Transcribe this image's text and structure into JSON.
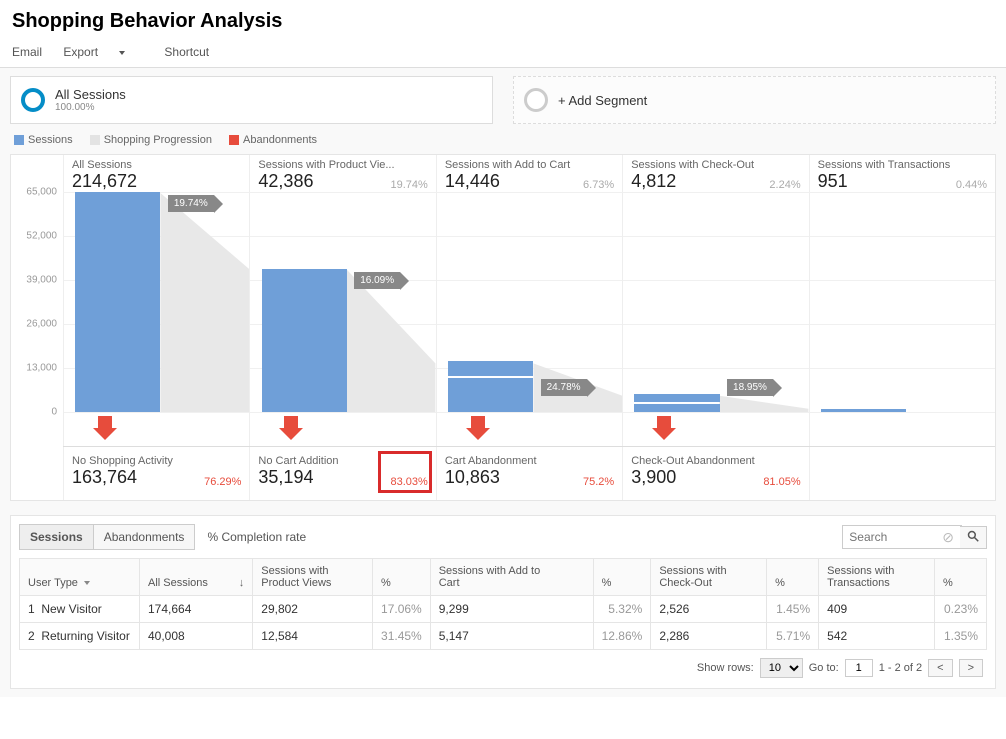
{
  "header": {
    "title": "Shopping Behavior Analysis"
  },
  "menu": {
    "email": "Email",
    "export": "Export",
    "shortcut": "Shortcut"
  },
  "segments": {
    "primary": {
      "title": "All Sessions",
      "sub": "100.00%"
    },
    "add": {
      "label": "+ Add Segment"
    }
  },
  "legend": {
    "sessions": {
      "label": "Sessions",
      "color": "#6f9fd8"
    },
    "progression": {
      "label": "Shopping Progression",
      "color": "#e3e3e3"
    },
    "abandon": {
      "label": "Abandonments",
      "color": "#e74c3c"
    }
  },
  "chart": {
    "ymax": 65000,
    "ystep": 13000,
    "yticks": [
      "65,000",
      "52,000",
      "39,000",
      "26,000",
      "13,000",
      "0"
    ],
    "stages": [
      {
        "title": "All Sessions",
        "value": "214,672",
        "pct": "",
        "bar": 65000,
        "bar2": 0,
        "prog_pct": "19.74%"
      },
      {
        "title": "Sessions with Product Vie...",
        "value": "42,386",
        "pct": "19.74%",
        "bar": 42386,
        "bar2": 0,
        "prog_pct": "16.09%"
      },
      {
        "title": "Sessions with Add to Cart",
        "value": "14,446",
        "pct": "6.73%",
        "bar": 10000,
        "bar2": 4446,
        "prog_pct": "24.78%"
      },
      {
        "title": "Sessions with Check-Out",
        "value": "4,812",
        "pct": "2.24%",
        "bar": 2500,
        "bar2": 2312,
        "prog_pct": "18.95%"
      },
      {
        "title": "Sessions with Transactions",
        "value": "951",
        "pct": "0.44%",
        "bar": 951,
        "bar2": 0,
        "prog_pct": ""
      }
    ],
    "abandon": [
      {
        "title": "No Shopping Activity",
        "value": "163,764",
        "pct": "76.29%",
        "highlight": false
      },
      {
        "title": "No Cart Addition",
        "value": "35,194",
        "pct": "83.03%",
        "highlight": true
      },
      {
        "title": "Cart Abandonment",
        "value": "10,863",
        "pct": "75.2%",
        "highlight": false
      },
      {
        "title": "Check-Out Abandonment",
        "value": "3,900",
        "pct": "81.05%",
        "highlight": false
      }
    ]
  },
  "tabs": {
    "sessions": "Sessions",
    "abandon": "Abandonments",
    "completion": "% Completion rate"
  },
  "search": {
    "placeholder": "Search"
  },
  "table": {
    "head": {
      "user_type": "User Type",
      "all": "All Sessions",
      "pv": "Sessions with\nProduct Views",
      "pv_pct": "%",
      "cart": "Sessions with Add to\nCart",
      "cart_pct": "%",
      "co": "Sessions with\nCheck-Out",
      "co_pct": "%",
      "tx": "Sessions with\nTransactions",
      "tx_pct": "%"
    },
    "rows": [
      {
        "idx": "1",
        "ut": "New Visitor",
        "all": "174,664",
        "pv": "29,802",
        "pv_pct": "17.06%",
        "cart": "9,299",
        "cart_pct": "5.32%",
        "co": "2,526",
        "co_pct": "1.45%",
        "tx": "409",
        "tx_pct": "0.23%"
      },
      {
        "idx": "2",
        "ut": "Returning Visitor",
        "all": "40,008",
        "pv": "12,584",
        "pv_pct": "31.45%",
        "cart": "5,147",
        "cart_pct": "12.86%",
        "co": "2,286",
        "co_pct": "5.71%",
        "tx": "542",
        "tx_pct": "1.35%"
      }
    ]
  },
  "pager": {
    "show_rows": "Show rows:",
    "rows_value": "10",
    "goto": "Go to:",
    "goto_value": "1",
    "range": "1 - 2 of 2",
    "prev": "<",
    "next": ">"
  }
}
